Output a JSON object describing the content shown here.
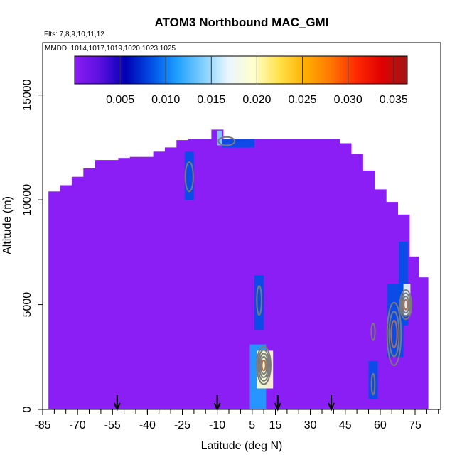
{
  "chart_data": {
    "type": "heatmap",
    "title": "ATOM3 Northbound MAC_GMI",
    "subtitle_flights": "Flts: 7,8,9,10,11,12",
    "subtitle_dates": "MMDD: 1014,1017,1019,1020,1023,1025",
    "xlabel": "Latitude (deg N)",
    "ylabel": "Altitude (m)",
    "xlim": [
      -85,
      86
    ],
    "ylim": [
      0,
      17500
    ],
    "x_ticks": [
      -85,
      -70,
      -55,
      -40,
      -25,
      -10,
      5,
      15,
      30,
      45,
      60,
      75
    ],
    "x_minor_step": 5,
    "y_ticks": [
      0,
      5000,
      10000,
      15000
    ],
    "colorbar": {
      "range": [
        0,
        0.0365
      ],
      "ticks": [
        0.005,
        0.01,
        0.015,
        0.02,
        0.025,
        0.03,
        0.035
      ],
      "tick_labels": [
        "0.005",
        "0.010",
        "0.015",
        "0.020",
        "0.025",
        "0.030",
        "0.035"
      ],
      "divisions": [
        0.005,
        0.01,
        0.015,
        0.02,
        0.025,
        0.03,
        0.035
      ],
      "colors": [
        "#8c1cf5",
        "#5a10e0",
        "#0000b4",
        "#0050e6",
        "#1ea0ff",
        "#7fcfff",
        "#eaf6ff",
        "#ffffcc",
        "#ffe24a",
        "#ffb000",
        "#ff7800",
        "#ff2a00",
        "#e00000",
        "#a01818"
      ]
    },
    "background_color": "#8a1ef5",
    "envelope": [
      [
        -80,
        0,
        10400
      ],
      [
        -75,
        0,
        10700
      ],
      [
        -70,
        0,
        11100
      ],
      [
        -65,
        0,
        11500
      ],
      [
        -60,
        0,
        11900
      ],
      [
        -55,
        0,
        11900
      ],
      [
        -50,
        0,
        12000
      ],
      [
        -45,
        0,
        12050
      ],
      [
        -40,
        0,
        12050
      ],
      [
        -35,
        0,
        12300
      ],
      [
        -30,
        0,
        12500
      ],
      [
        -25,
        0,
        12850
      ],
      [
        -20,
        0,
        12900
      ],
      [
        -15,
        0,
        12900
      ],
      [
        -10,
        0,
        13350
      ],
      [
        -5,
        0,
        12900
      ],
      [
        0,
        0,
        12900
      ],
      [
        5,
        0,
        12900
      ],
      [
        10,
        0,
        12900
      ],
      [
        15,
        0,
        12900
      ],
      [
        20,
        0,
        12900
      ],
      [
        25,
        0,
        12900
      ],
      [
        30,
        0,
        12900
      ],
      [
        35,
        0,
        12900
      ],
      [
        40,
        0,
        12900
      ],
      [
        45,
        0,
        12700
      ],
      [
        50,
        0,
        12200
      ],
      [
        55,
        0,
        11400
      ],
      [
        60,
        0,
        10500
      ],
      [
        65,
        0,
        9900
      ],
      [
        70,
        0,
        9300
      ],
      [
        75,
        0,
        7300
      ],
      [
        79,
        0,
        6300
      ]
    ],
    "features": [
      {
        "lat_range": [
          -24,
          -20
        ],
        "alt_range": [
          10000,
          12300
        ],
        "value": 0.009
      },
      {
        "lat_range": [
          -10,
          -8
        ],
        "alt_range": [
          12600,
          13300
        ],
        "value": 0.014
      },
      {
        "lat_range": [
          -8,
          6
        ],
        "alt_range": [
          12500,
          12900
        ],
        "value": 0.01
      },
      {
        "lat_range": [
          6,
          10
        ],
        "alt_range": [
          3800,
          6400
        ],
        "value": 0.009
      },
      {
        "lat_range": [
          4,
          11
        ],
        "alt_range": [
          0,
          3100
        ],
        "value": 0.013
      },
      {
        "lat_range": [
          7,
          14
        ],
        "alt_range": [
          1000,
          2800
        ],
        "value": 0.02
      },
      {
        "lat_range": [
          55,
          59
        ],
        "alt_range": [
          500,
          2300
        ],
        "value": 0.008
      },
      {
        "lat_range": [
          63,
          70
        ],
        "alt_range": [
          2500,
          6000
        ],
        "value": 0.01
      },
      {
        "lat_range": [
          68,
          72
        ],
        "alt_range": [
          4000,
          8000
        ],
        "value": 0.008
      },
      {
        "lat_range": [
          70,
          73
        ],
        "alt_range": [
          4500,
          6000
        ],
        "value": 0.018
      }
    ],
    "contours": [
      {
        "lat": -22,
        "alt": 11100,
        "dlat": 1.7,
        "dalt": 700,
        "levels": 1
      },
      {
        "lat": -6,
        "alt": 12800,
        "dlat": 3.5,
        "dalt": 200,
        "levels": 1
      },
      {
        "lat": 8,
        "alt": 5200,
        "dlat": 1.0,
        "dalt": 700,
        "levels": 1
      },
      {
        "lat": 10,
        "alt": 2100,
        "dlat": 3.0,
        "dalt": 900,
        "levels": 5
      },
      {
        "lat": 57,
        "alt": 1200,
        "dlat": 0.7,
        "dalt": 500,
        "levels": 1
      },
      {
        "lat": 57,
        "alt": 3700,
        "dlat": 0.8,
        "dalt": 400,
        "levels": 1
      },
      {
        "lat": 66,
        "alt": 3600,
        "dlat": 3.0,
        "dalt": 1500,
        "levels": 3
      },
      {
        "lat": 71,
        "alt": 5000,
        "dlat": 2.5,
        "dalt": 700,
        "levels": 4
      }
    ],
    "arrows_lat": [
      -53,
      -10,
      16,
      39
    ]
  }
}
